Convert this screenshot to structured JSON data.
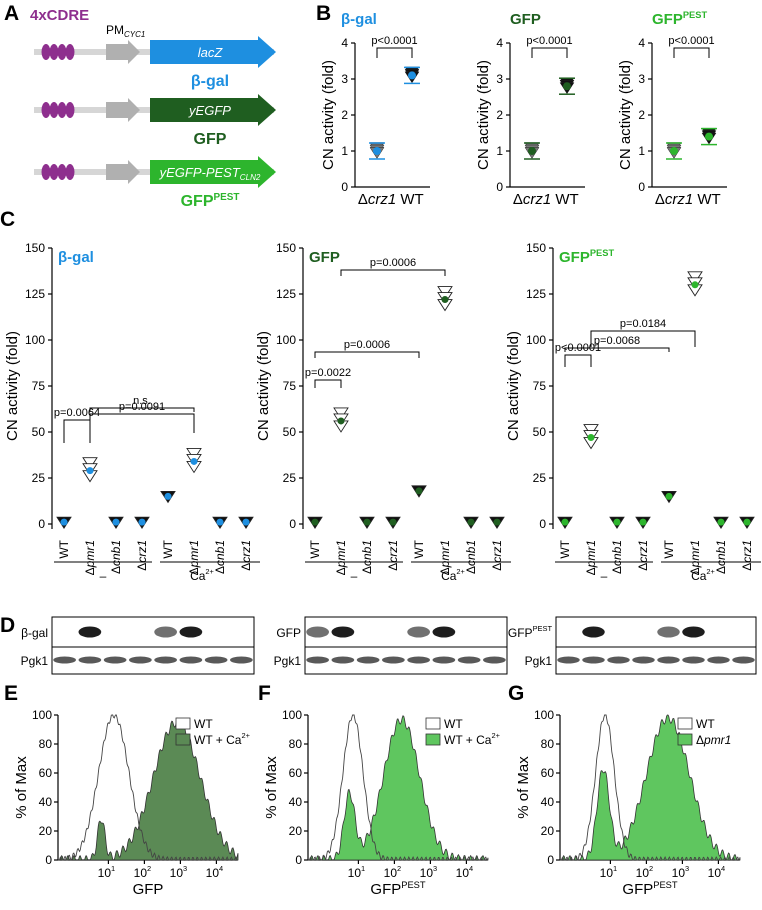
{
  "panel_labels": {
    "A": "A",
    "B": "B",
    "C": "C",
    "D": "D",
    "E": "E",
    "F": "F",
    "G": "G"
  },
  "colors": {
    "cdre": "#8e2f8e",
    "bgal": "#1e8fe0",
    "gfp": "#1f5e20",
    "gfppest": "#2db52d",
    "grey": "#b0b0b0",
    "line": "#d6d6d6",
    "dkgreen_fill": "#5b8a55",
    "ltgreen_fill": "#5fc65f"
  },
  "panelA": {
    "cdre_label": "4xCDRE",
    "promoter_main": "PM",
    "promoter_sub": "CYC1",
    "constructs": [
      {
        "gene": "lacZ",
        "name": "β-gal"
      },
      {
        "gene": "yEGFP",
        "name": "GFP"
      },
      {
        "gene": "yEGFP-PEST",
        "gene_sub": "CLN2",
        "name": "GFP",
        "name_sup": "PEST"
      }
    ]
  },
  "panelB": {
    "ylabel": "CN activity (fold)",
    "strains": [
      "Δcrz1",
      "WT"
    ],
    "plots": [
      {
        "title": "β-gal",
        "title_sup": "",
        "pval": "p<0.0001",
        "ylim": [
          0,
          4
        ],
        "yticks": [
          "0",
          "1",
          "2",
          "3",
          "4"
        ],
        "means": [
          1.0,
          3.1
        ]
      },
      {
        "title": "GFP",
        "title_sup": "",
        "pval": "p<0.0001",
        "ylim": [
          0,
          4
        ],
        "yticks": [
          "0",
          "1",
          "2",
          "3",
          "4"
        ],
        "means": [
          1.0,
          2.8
        ]
      },
      {
        "title": "GFP",
        "title_sup": "PEST",
        "pval": "p<0.0001",
        "ylim": [
          0,
          4
        ],
        "yticks": [
          "0",
          "1",
          "2",
          "3",
          "4"
        ],
        "means": [
          1.0,
          1.4
        ]
      }
    ]
  },
  "chart_data": [
    {
      "type": "scatter",
      "title": "β-gal",
      "xlabel": "",
      "ylabel": "CN activity (fold)",
      "ylim": [
        0,
        150
      ],
      "categories": [
        "WT",
        "Δpmr1",
        "Δcnb1",
        "Δcrz1",
        "WT",
        "Δpmr1",
        "Δcnb1",
        "Δcrz1"
      ],
      "groups": [
        "–",
        "Ca2+"
      ],
      "means": [
        1,
        29,
        1,
        1,
        15,
        34,
        1,
        1
      ],
      "pvalues": [
        "p=0.0064",
        "p=0.0091",
        "n.s."
      ]
    },
    {
      "type": "scatter",
      "title": "GFP",
      "xlabel": "",
      "ylabel": "CN activity (fold)",
      "ylim": [
        0,
        150
      ],
      "categories": [
        "WT",
        "Δpmr1",
        "Δcnb1",
        "Δcrz1",
        "WT",
        "Δpmr1",
        "Δcnb1",
        "Δcrz1"
      ],
      "groups": [
        "–",
        "Ca2+"
      ],
      "means": [
        1,
        56,
        1,
        1,
        18,
        122,
        1,
        1
      ],
      "pvalues": [
        "p=0.0022",
        "p=0.0006",
        "p=0.0006"
      ]
    },
    {
      "type": "scatter",
      "title": "GFP PEST",
      "xlabel": "",
      "ylabel": "CN activity (fold)",
      "ylim": [
        0,
        150
      ],
      "categories": [
        "WT",
        "Δpmr1",
        "Δcnb1",
        "Δcrz1",
        "WT",
        "Δpmr1",
        "Δcnb1",
        "Δcrz1"
      ],
      "groups": [
        "–",
        "Ca2+"
      ],
      "means": [
        1,
        47,
        1,
        1,
        15,
        130,
        1,
        1
      ],
      "pvalues": [
        "p<0.0001",
        "p=0.0068",
        "p=0.0184"
      ]
    }
  ],
  "panelC": {
    "titles": [
      {
        "t": "β-gal",
        "sup": ""
      },
      {
        "t": "GFP",
        "sup": ""
      },
      {
        "t": "GFP",
        "sup": "PEST"
      }
    ],
    "yticks": [
      "0",
      "25",
      "50",
      "75",
      "100",
      "125",
      "150"
    ],
    "xcat": [
      "WT",
      "Δpmr1",
      "Δcnb1",
      "Δcrz1",
      "WT",
      "Δpmr1",
      "Δcnb1",
      "Δcrz1"
    ],
    "group_minus": "–",
    "group_ca": "Ca",
    "group_ca_sup": "2+"
  },
  "panelD": {
    "blots": [
      {
        "top": "β-gal",
        "top_sup": "",
        "bottom": "Pgk1"
      },
      {
        "top": "GFP",
        "top_sup": "",
        "bottom": "Pgk1"
      },
      {
        "top": "GFP",
        "top_sup": "PEST",
        "bottom": "Pgk1"
      }
    ]
  },
  "flow": {
    "ylabel": "% of Max",
    "yticks": [
      "0",
      "20",
      "40",
      "60",
      "80",
      "100"
    ],
    "xticks": [
      "10",
      "10",
      "10",
      "10"
    ],
    "xticks_exp": [
      "1",
      "2",
      "3",
      "4"
    ],
    "plots": [
      {
        "xlabel": "GFP",
        "xlabel_sup": "",
        "legend": [
          {
            "t": "WT",
            "sup": ""
          },
          {
            "t": "WT + Ca",
            "sup": "2+"
          }
        ]
      },
      {
        "xlabel": "GFP",
        "xlabel_sup": "PEST",
        "legend": [
          {
            "t": "WT",
            "sup": ""
          },
          {
            "t": "WT + Ca",
            "sup": "2+"
          }
        ]
      },
      {
        "xlabel": "GFP",
        "xlabel_sup": "PEST",
        "legend": [
          {
            "t": "WT",
            "sup": ""
          },
          {
            "t": "Δpmr1",
            "sup": ""
          }
        ]
      }
    ]
  }
}
